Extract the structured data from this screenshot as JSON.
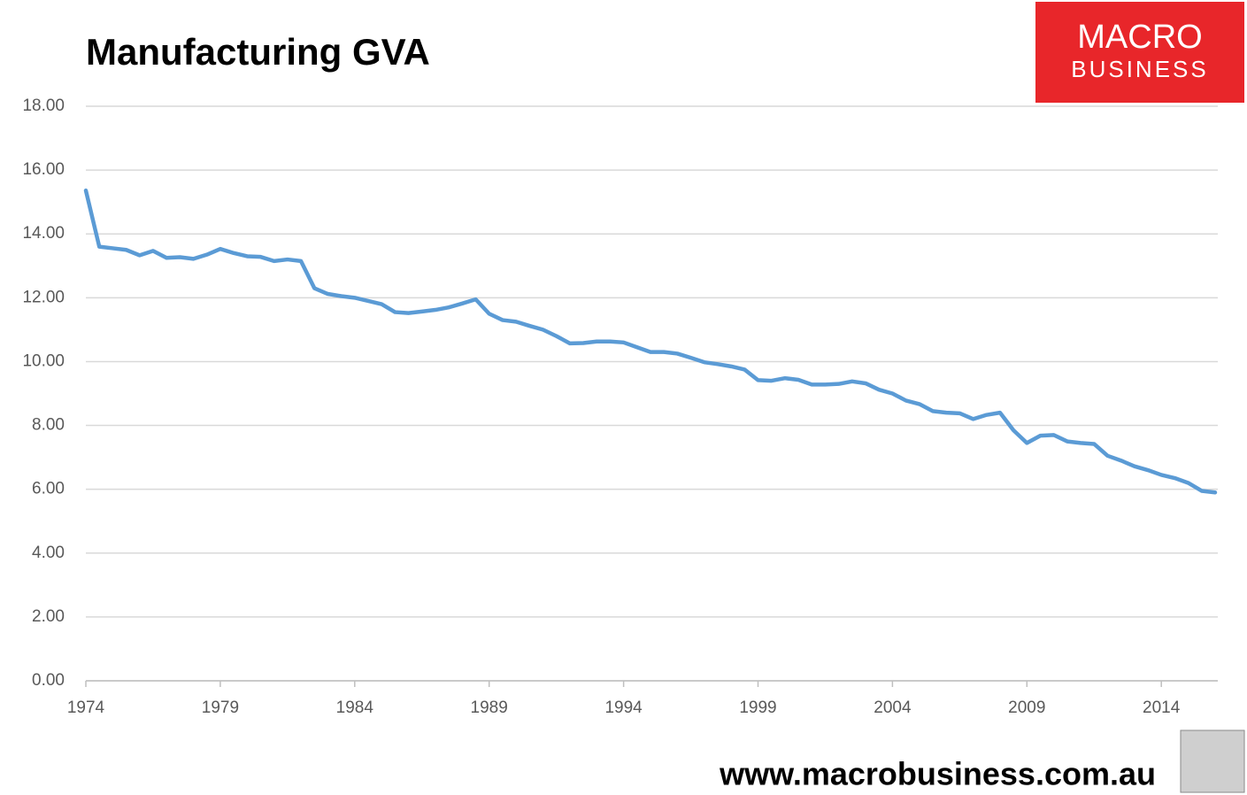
{
  "chart_data": {
    "type": "line",
    "title": "Manufacturing GVA",
    "brand": {
      "line1": "MACRO",
      "line2": "BUSINESS"
    },
    "footer": "www.macrobusiness.com.au",
    "x": [
      1974.0,
      1974.5,
      1975.0,
      1975.5,
      1976.0,
      1976.5,
      1977.0,
      1977.5,
      1978.0,
      1978.5,
      1979.0,
      1979.5,
      1980.0,
      1980.5,
      1981.0,
      1981.5,
      1982.0,
      1982.5,
      1983.0,
      1983.5,
      1984.0,
      1984.5,
      1985.0,
      1985.5,
      1986.0,
      1986.5,
      1987.0,
      1987.5,
      1988.0,
      1988.5,
      1989.0,
      1989.5,
      1990.0,
      1990.5,
      1991.0,
      1991.5,
      1992.0,
      1992.5,
      1993.0,
      1993.5,
      1994.0,
      1994.5,
      1995.0,
      1995.5,
      1996.0,
      1996.5,
      1997.0,
      1997.5,
      1998.0,
      1998.5,
      1999.0,
      1999.5,
      2000.0,
      2000.5,
      2001.0,
      2001.5,
      2002.0,
      2002.5,
      2003.0,
      2003.5,
      2004.0,
      2004.5,
      2005.0,
      2005.5,
      2006.0,
      2006.5,
      2007.0,
      2007.5,
      2008.0,
      2008.5,
      2009.0,
      2009.5,
      2010.0,
      2010.5,
      2011.0,
      2011.5,
      2012.0,
      2012.5,
      2013.0,
      2013.5,
      2014.0,
      2014.5,
      2015.0,
      2015.5,
      2016.0
    ],
    "series": [
      {
        "name": "Manufacturing GVA",
        "color": "#5b9bd5",
        "values": [
          15.36,
          13.6,
          13.55,
          13.5,
          13.33,
          13.47,
          13.25,
          13.27,
          13.22,
          13.35,
          13.53,
          13.4,
          13.3,
          13.28,
          13.15,
          13.2,
          13.15,
          12.3,
          12.12,
          12.05,
          12.0,
          11.9,
          11.8,
          11.55,
          11.52,
          11.57,
          11.62,
          11.7,
          11.82,
          11.95,
          11.5,
          11.3,
          11.25,
          11.12,
          11.0,
          10.8,
          10.57,
          10.58,
          10.63,
          10.63,
          10.6,
          10.45,
          10.3,
          10.3,
          10.25,
          10.12,
          9.98,
          9.92,
          9.85,
          9.75,
          9.42,
          9.4,
          9.48,
          9.43,
          9.28,
          9.28,
          9.3,
          9.38,
          9.32,
          9.12,
          9.0,
          8.78,
          8.67,
          8.45,
          8.4,
          8.38,
          8.2,
          8.33,
          8.4,
          7.85,
          7.45,
          7.68,
          7.7,
          7.5,
          7.45,
          7.42,
          7.05,
          6.9,
          6.72,
          6.6,
          6.45,
          6.35,
          6.2,
          5.95,
          5.9
        ]
      }
    ],
    "xlim": [
      1974,
      2016.1
    ],
    "xticks": [
      1974,
      1979,
      1984,
      1989,
      1994,
      1999,
      2004,
      2009,
      2014
    ],
    "ylim": [
      0,
      18
    ],
    "yticks": [
      {
        "value": 0,
        "label": "0.00"
      },
      {
        "value": 2,
        "label": "2.00"
      },
      {
        "value": 4,
        "label": "4.00"
      },
      {
        "value": 6,
        "label": "6.00"
      },
      {
        "value": 8,
        "label": "8.00"
      },
      {
        "value": 10,
        "label": "10.00"
      },
      {
        "value": 12,
        "label": "12.00"
      },
      {
        "value": 14,
        "label": "14.00"
      },
      {
        "value": 16,
        "label": "16.00"
      },
      {
        "value": 18,
        "label": "18.00"
      }
    ],
    "grid": true
  }
}
